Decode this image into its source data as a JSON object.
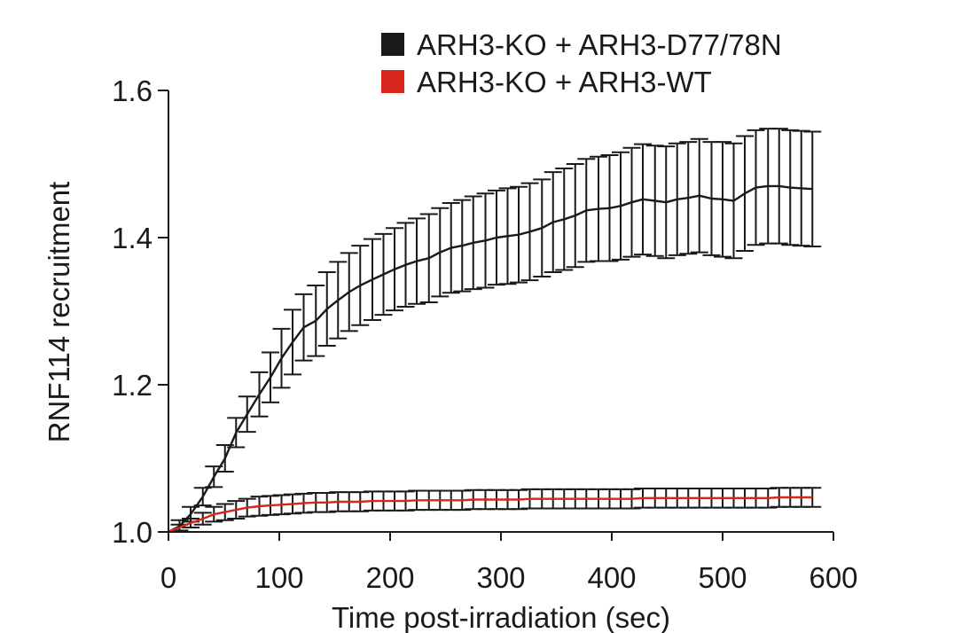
{
  "chart_data": {
    "type": "line",
    "title": "",
    "xlabel": "Time post-irradiation (sec)",
    "ylabel": "RNF114 recruitment",
    "xlim": [
      0,
      600
    ],
    "ylim": [
      1.0,
      1.6
    ],
    "xticks": [
      0,
      100,
      200,
      300,
      400,
      500,
      600
    ],
    "xtick_labels": [
      "0",
      "100",
      "200",
      "300",
      "400",
      "500",
      "600"
    ],
    "yticks": [
      1.0,
      1.2,
      1.4,
      1.6
    ],
    "ytick_labels": [
      "1.0",
      "1.2",
      "1.4",
      "1.6"
    ],
    "grid": false,
    "legend_position": "top-right",
    "x": [
      0,
      10,
      20,
      31,
      41,
      51,
      61,
      71,
      82,
      92,
      102,
      112,
      122,
      133,
      143,
      153,
      163,
      173,
      184,
      194,
      204,
      214,
      224,
      235,
      245,
      255,
      265,
      275,
      286,
      296,
      306,
      316,
      326,
      337,
      347,
      357,
      367,
      377,
      388,
      398,
      408,
      418,
      428,
      439,
      449,
      459,
      469,
      479,
      490,
      500,
      510,
      520,
      530,
      541,
      551,
      561,
      571,
      581
    ],
    "series": [
      {
        "name": "ARH3-KO + ARH3-D77/78N",
        "color": "#1a1a1a",
        "values": [
          1.0,
          1.008,
          1.024,
          1.048,
          1.075,
          1.1,
          1.135,
          1.16,
          1.187,
          1.21,
          1.236,
          1.258,
          1.278,
          1.287,
          1.303,
          1.315,
          1.326,
          1.335,
          1.343,
          1.35,
          1.357,
          1.363,
          1.368,
          1.372,
          1.38,
          1.386,
          1.389,
          1.393,
          1.396,
          1.4,
          1.402,
          1.404,
          1.408,
          1.413,
          1.421,
          1.425,
          1.43,
          1.437,
          1.439,
          1.44,
          1.443,
          1.448,
          1.452,
          1.45,
          1.448,
          1.452,
          1.454,
          1.457,
          1.453,
          1.452,
          1.45,
          1.46,
          1.468,
          1.47,
          1.47,
          1.468,
          1.467,
          1.466
        ],
        "error": [
          0.004,
          0.008,
          0.01,
          0.012,
          0.014,
          0.018,
          0.02,
          0.024,
          0.03,
          0.034,
          0.04,
          0.044,
          0.045,
          0.048,
          0.05,
          0.052,
          0.053,
          0.054,
          0.055,
          0.055,
          0.056,
          0.057,
          0.058,
          0.06,
          0.06,
          0.061,
          0.062,
          0.063,
          0.064,
          0.064,
          0.065,
          0.065,
          0.066,
          0.066,
          0.068,
          0.069,
          0.07,
          0.07,
          0.071,
          0.072,
          0.073,
          0.074,
          0.075,
          0.075,
          0.076,
          0.076,
          0.076,
          0.077,
          0.077,
          0.078,
          0.078,
          0.078,
          0.078,
          0.078,
          0.078,
          0.078,
          0.078,
          0.078
        ]
      },
      {
        "name": "ARH3-KO + ARH3-WT",
        "color": "#d7261b",
        "values": [
          1.0,
          1.006,
          1.012,
          1.018,
          1.024,
          1.027,
          1.03,
          1.033,
          1.035,
          1.036,
          1.037,
          1.038,
          1.039,
          1.04,
          1.04,
          1.041,
          1.041,
          1.041,
          1.042,
          1.042,
          1.042,
          1.042,
          1.043,
          1.043,
          1.043,
          1.043,
          1.043,
          1.044,
          1.044,
          1.044,
          1.044,
          1.044,
          1.045,
          1.045,
          1.045,
          1.045,
          1.045,
          1.045,
          1.045,
          1.045,
          1.045,
          1.045,
          1.046,
          1.046,
          1.046,
          1.046,
          1.046,
          1.046,
          1.046,
          1.046,
          1.046,
          1.046,
          1.046,
          1.046,
          1.047,
          1.047,
          1.047,
          1.047
        ],
        "error": [
          0.002,
          0.004,
          0.006,
          0.008,
          0.01,
          0.011,
          0.012,
          0.012,
          0.013,
          0.013,
          0.013,
          0.013,
          0.013,
          0.013,
          0.013,
          0.013,
          0.013,
          0.013,
          0.013,
          0.013,
          0.013,
          0.013,
          0.013,
          0.013,
          0.013,
          0.013,
          0.013,
          0.013,
          0.013,
          0.013,
          0.013,
          0.013,
          0.013,
          0.013,
          0.013,
          0.013,
          0.013,
          0.013,
          0.013,
          0.013,
          0.013,
          0.013,
          0.013,
          0.013,
          0.013,
          0.013,
          0.013,
          0.013,
          0.013,
          0.013,
          0.013,
          0.013,
          0.013,
          0.013,
          0.013,
          0.013,
          0.013,
          0.013
        ]
      }
    ]
  }
}
